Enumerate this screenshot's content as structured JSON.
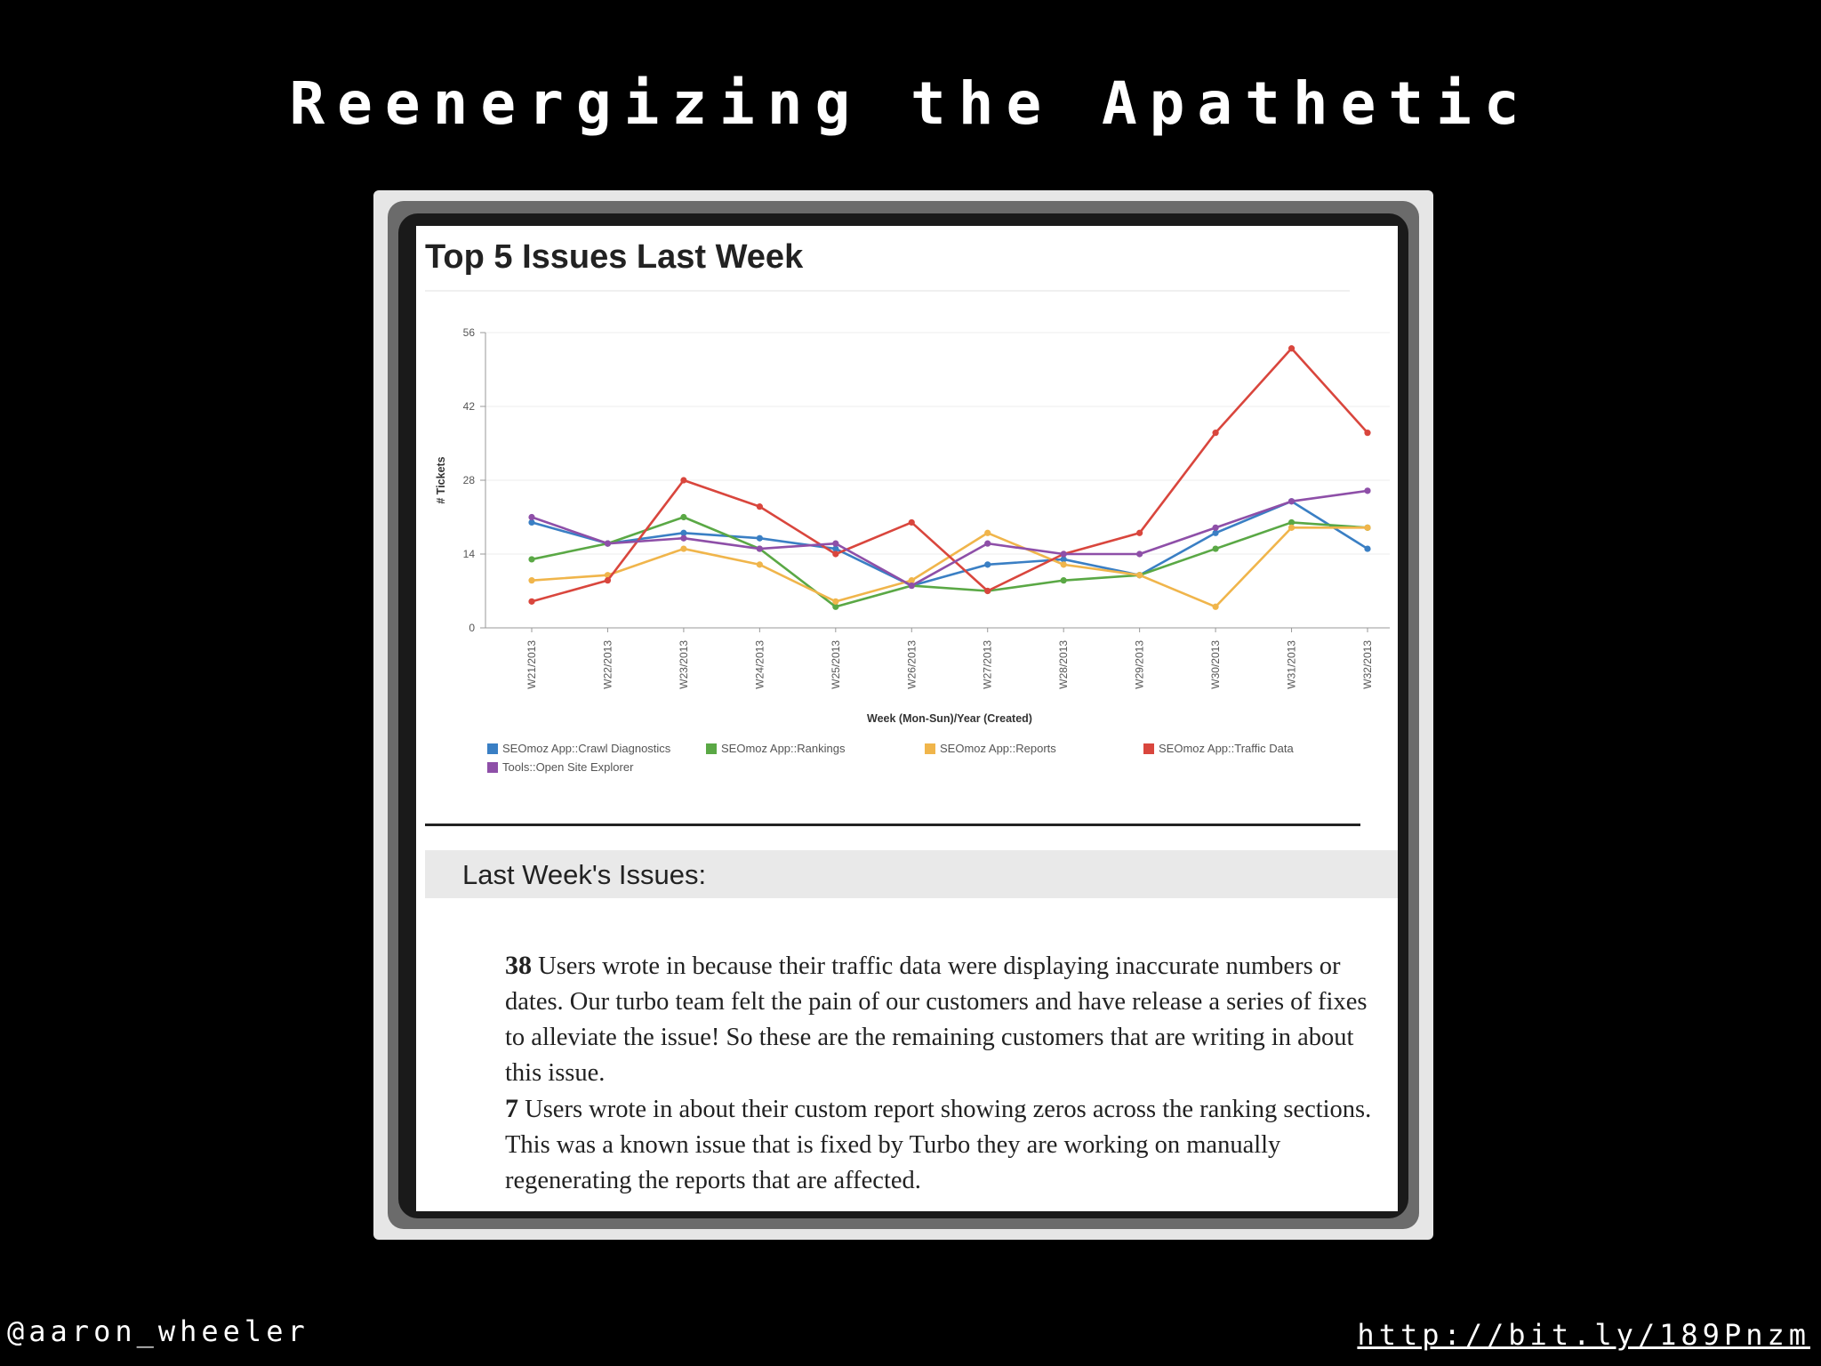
{
  "slide": {
    "title": "Reenergizing the Apathetic",
    "handle": "@aaron_wheeler",
    "url": "http://bit.ly/189Pnzm"
  },
  "panel": {
    "title": "Top 5 Issues Last Week",
    "section_heading": "Last Week's Issues:",
    "issues": [
      {
        "count": "38",
        "text": " Users wrote in because their traffic data were displaying inaccurate numbers or dates.  Our turbo team felt the pain of our customers and have release a series of fixes to alleviate the issue!  So these are the remaining customers that are writing in about this issue."
      },
      {
        "count": "7",
        "text": " Users wrote in about their custom report showing zeros across the ranking sections.  This was a known issue that is fixed by Turbo they are working on manually regenerating the reports that are affected."
      }
    ]
  },
  "chart_data": {
    "type": "line",
    "title": "",
    "xlabel": "Week (Mon-Sun)/Year (Created)",
    "ylabel": "# Tickets",
    "ylim": [
      0,
      56
    ],
    "yticks": [
      0,
      14,
      28,
      42,
      56
    ],
    "grid": true,
    "legend_position": "bottom",
    "categories": [
      "W21/2013",
      "W22/2013",
      "W23/2013",
      "W24/2013",
      "W25/2013",
      "W26/2013",
      "W27/2013",
      "W28/2013",
      "W29/2013",
      "W30/2013",
      "W31/2013",
      "W32/2013"
    ],
    "series": [
      {
        "name": "SEOmoz App::Crawl Diagnostics",
        "color": "#3a7fc4",
        "values": [
          20,
          16,
          18,
          17,
          15,
          8,
          12,
          13,
          10,
          18,
          24,
          15
        ]
      },
      {
        "name": "SEOmoz App::Rankings",
        "color": "#5aa845",
        "values": [
          13,
          16,
          21,
          15,
          4,
          8,
          7,
          9,
          10,
          15,
          20,
          19
        ]
      },
      {
        "name": "SEOmoz App::Reports",
        "color": "#f0b54b",
        "values": [
          9,
          10,
          15,
          12,
          5,
          9,
          18,
          12,
          10,
          4,
          19,
          19
        ]
      },
      {
        "name": "SEOmoz App::Traffic Data",
        "color": "#d9463d",
        "values": [
          5,
          9,
          28,
          23,
          14,
          20,
          7,
          14,
          18,
          37,
          53,
          37
        ]
      },
      {
        "name": "Tools::Open Site Explorer",
        "color": "#8e4fa8",
        "values": [
          21,
          16,
          17,
          15,
          16,
          8,
          16,
          14,
          14,
          19,
          24,
          26
        ]
      }
    ]
  }
}
